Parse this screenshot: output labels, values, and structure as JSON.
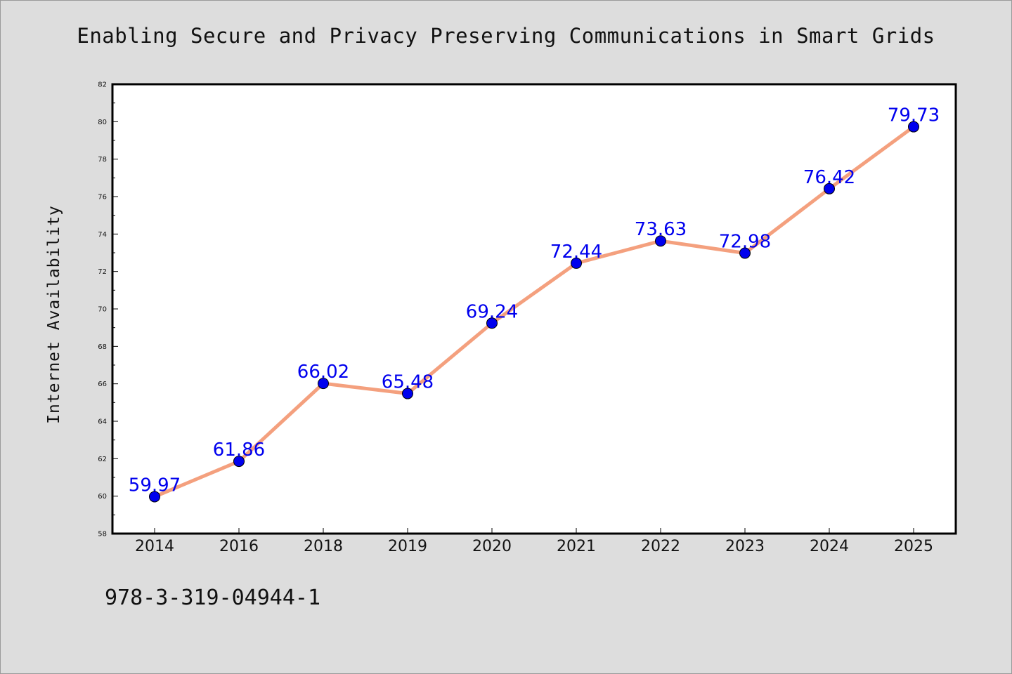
{
  "title": "Enabling Secure and Privacy Preserving Communications in Smart Grids",
  "footer_text": "978-3-319-04944-1",
  "colors": {
    "background": "#dddddd",
    "plot_background": "#ffffff",
    "line": "#f4a07e",
    "marker": "#0000ee",
    "data_label": "#0000ee"
  },
  "chart_data": {
    "type": "line",
    "title": "Enabling Secure and Privacy Preserving Communications in Smart Grids",
    "xlabel": "",
    "ylabel": "Internet Availability",
    "categories": [
      "2014",
      "2016",
      "2018",
      "2019",
      "2020",
      "2021",
      "2022",
      "2023",
      "2024",
      "2025"
    ],
    "series": [
      {
        "values": [
          59.97,
          61.86,
          66.02,
          65.48,
          69.24,
          72.44,
          73.63,
          72.98,
          76.42,
          79.73
        ],
        "labels": [
          "59.97",
          "61.86",
          "66.02",
          "65.48",
          "69.24",
          "72.44",
          "73.63",
          "72.98",
          "76.42",
          "79.73"
        ]
      }
    ],
    "ylim": [
      58,
      82
    ],
    "yticks": [
      "58",
      "60",
      "62",
      "64",
      "66",
      "68",
      "70",
      "72",
      "74",
      "76",
      "78",
      "80",
      "82"
    ],
    "grid": false,
    "legend": "none"
  }
}
